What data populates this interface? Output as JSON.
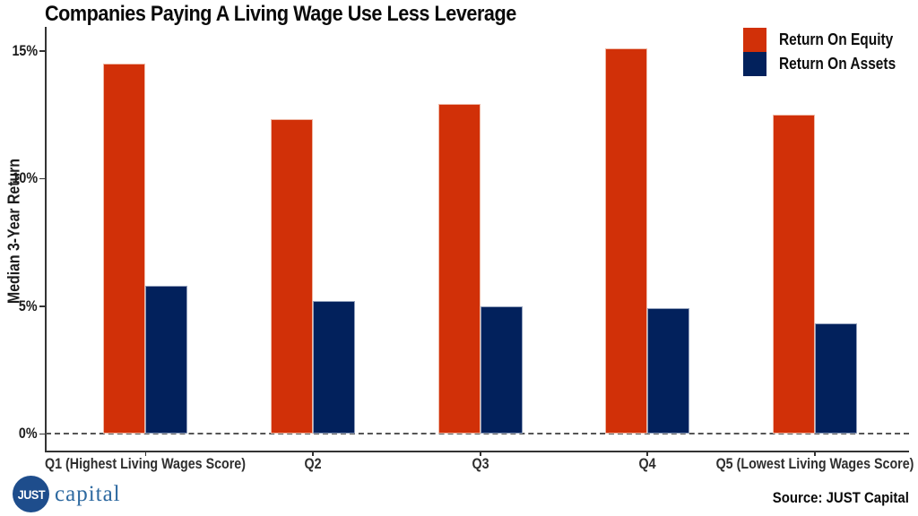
{
  "title": "Companies Paying A Living Wage Use Less Leverage",
  "y_axis_label": "Median 3-Year Return",
  "source": "Source: JUST Capital",
  "logo": {
    "circle_text": "JUST",
    "wordmark": "capital"
  },
  "legend": [
    {
      "label": "Return On Equity",
      "color": "#d13008"
    },
    {
      "label": "Return On Assets",
      "color": "#02215c"
    }
  ],
  "colors": {
    "roe_red": "#d13008",
    "roa_navy": "#02215c",
    "logo_blue": "#1e4d8c",
    "axis": "#333333"
  },
  "chart_data": {
    "type": "bar",
    "categories": [
      "Q1 (Highest Living Wages Score)",
      "Q2",
      "Q3",
      "Q4",
      "Q5 (Lowest Living Wages Score)"
    ],
    "series": [
      {
        "name": "Return On Equity",
        "color": "#d13008",
        "values": [
          14.5,
          12.3,
          12.9,
          15.1,
          12.5
        ]
      },
      {
        "name": "Return On Assets",
        "color": "#02215c",
        "values": [
          5.8,
          5.2,
          5.0,
          4.9,
          4.3
        ]
      }
    ],
    "title": "Companies Paying A Living Wage Use Less Leverage",
    "xlabel": "",
    "ylabel": "Median 3-Year Return",
    "ylim": [
      0,
      15.8
    ],
    "yticks": [
      0,
      5,
      10,
      15
    ],
    "ytick_labels": [
      "0%",
      "5%",
      "10%",
      "15%"
    ],
    "legend_position": "top-right",
    "grid": false,
    "zero_line_style": "dashed"
  }
}
